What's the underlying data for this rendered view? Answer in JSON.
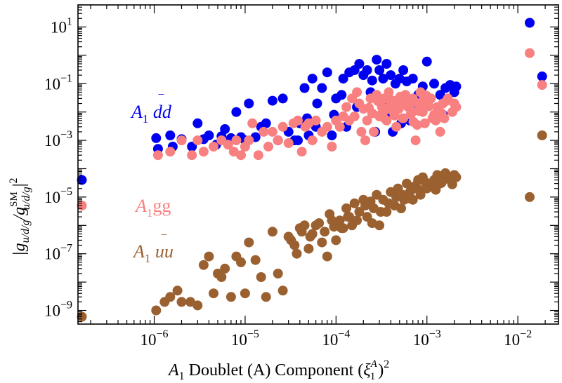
{
  "chart_data": {
    "type": "scatter",
    "title": "",
    "xscale": "log",
    "yscale": "log",
    "xlim": [
      1.45e-07,
      0.028
    ],
    "ylim": [
      3.3e-10,
      60
    ],
    "x_ticks": [
      {
        "value": 1e-06,
        "base": "10",
        "exp": "−6"
      },
      {
        "value": 1e-05,
        "base": "10",
        "exp": "−5"
      },
      {
        "value": 0.0001,
        "base": "10",
        "exp": "−4"
      },
      {
        "value": 0.001,
        "base": "10",
        "exp": "−3"
      },
      {
        "value": 0.01,
        "base": "10",
        "exp": "−2"
      }
    ],
    "y_ticks": [
      {
        "value": 10,
        "base": "10",
        "exp": "1"
      },
      {
        "value": 0.1,
        "base": "10",
        "exp": "−1"
      },
      {
        "value": 0.001,
        "base": "10",
        "exp": "−3"
      },
      {
        "value": 1e-05,
        "base": "10",
        "exp": "−5"
      },
      {
        "value": 1e-07,
        "base": "10",
        "exp": "−7"
      },
      {
        "value": 1e-09,
        "base": "10",
        "exp": "−9"
      }
    ],
    "xlabel": {
      "main": "A",
      "sub": "1",
      "text": " Doublet (A) Component (",
      "greek": "ξ",
      "greek_sup": "A",
      "greek_sub": "1",
      "close": ")",
      "power": "2"
    },
    "ylabel": {
      "text": "|g",
      "sub1": "u/d/g",
      "slash": "/g",
      "sup2": "SM",
      "sub2": "u/d/g",
      "close": "|",
      "power": "2"
    },
    "series": [
      {
        "name": "A1 dd̄",
        "label": {
          "main": "A",
          "sub": "1",
          "text": " dd",
          "bar": "‾"
        },
        "color": "#0000f0",
        "x": [
          1.6e-07,
          1.05e-06,
          1.1e-06,
          1.5e-06,
          1.6e-06,
          2e-06,
          2.6e-06,
          3e-06,
          3.5e-06,
          4e-06,
          4.8e-06,
          5.5e-06,
          6e-06,
          6.5e-06,
          7e-06,
          8e-06,
          9e-06,
          1e-05,
          1.1e-05,
          1.3e-05,
          1.5e-05,
          1.7e-05,
          2e-05,
          2.3e-05,
          2.6e-05,
          3e-05,
          3.5e-05,
          4e-05,
          4.5e-05,
          5e-05,
          5.5e-05,
          6e-05,
          7e-05,
          8e-05,
          9e-05,
          0.0001,
          0.00012,
          0.00014,
          0.00016,
          0.00018,
          0.0002,
          0.00022,
          0.00025,
          0.00028,
          0.0003,
          0.00033,
          0.00036,
          0.0004,
          0.00045,
          0.0005,
          0.00055,
          0.0006,
          0.0007,
          0.0008,
          0.0009,
          0.001,
          0.0012,
          0.0014,
          0.0016,
          0.0018,
          0.002,
          0.0021,
          0.00013,
          0.00017,
          0.00024,
          0.00032,
          0.00042,
          0.00065,
          0.00085,
          0.0011,
          0.0015,
          3.8e-05,
          4.8e-05,
          6.2e-05,
          9.5e-05,
          0.000115,
          0.00027,
          0.00037,
          0.00052,
          0.00075,
          0.0135,
          0.0185
        ],
        "y": [
          4e-05,
          0.0012,
          0.0005,
          0.0015,
          0.0006,
          0.0011,
          0.0006,
          0.004,
          0.0011,
          0.0015,
          0.0007,
          0.0014,
          0.0025,
          0.0008,
          0.0012,
          0.01,
          0.0013,
          0.001,
          0.02,
          0.0013,
          0.003,
          0.004,
          0.025,
          0.001,
          0.03,
          0.002,
          0.001,
          0.004,
          0.07,
          0.0015,
          0.15,
          0.003,
          0.07,
          0.25,
          0.0015,
          0.03,
          0.15,
          0.25,
          0.3,
          0.5,
          0.2,
          0.3,
          0.13,
          0.7,
          0.3,
          0.15,
          0.5,
          0.2,
          0.1,
          0.15,
          0.3,
          0.12,
          0.15,
          0.04,
          0.08,
          0.6,
          0.1,
          0.04,
          0.07,
          0.09,
          0.05,
          0.08,
          0.003,
          0.015,
          0.05,
          0.02,
          0.002,
          0.005,
          0.015,
          0.03,
          0.008,
          0.001,
          0.006,
          0.02,
          0.008,
          0.04,
          0.002,
          0.008,
          0.004,
          0.015,
          14,
          0.18
        ]
      },
      {
        "name": "A1gg",
        "label": {
          "main": "A",
          "sub": "1",
          "text": "gg"
        },
        "color": "#f88080",
        "x": [
          1.6e-07,
          1.1e-06,
          1.5e-06,
          2e-06,
          2.6e-06,
          3e-06,
          3.5e-06,
          4.5e-06,
          5.5e-06,
          6.5e-06,
          7.5e-06,
          8e-06,
          9e-06,
          1e-05,
          1.1e-05,
          1.2e-05,
          1.4e-05,
          1.6e-05,
          1.8e-05,
          2e-05,
          2.3e-05,
          2.6e-05,
          3e-05,
          3.4e-05,
          3.8e-05,
          4.2e-05,
          4.6e-05,
          5e-05,
          5.5e-05,
          6e-05,
          7e-05,
          8e-05,
          9e-05,
          0.0001,
          0.00011,
          0.00012,
          0.00013,
          0.00014,
          0.00015,
          0.00016,
          0.00017,
          0.00018,
          0.0002,
          0.00022,
          0.00024,
          0.00026,
          0.00028,
          0.0003,
          0.00032,
          0.00034,
          0.00036,
          0.00038,
          0.0004,
          0.00043,
          0.00046,
          0.0005,
          0.00054,
          0.00058,
          0.00062,
          0.00066,
          0.0007,
          0.00075,
          0.0008,
          0.00085,
          0.0009,
          0.00095,
          0.001,
          0.0011,
          0.0012,
          0.0013,
          0.0014,
          0.0015,
          0.0017,
          0.0019,
          0.002,
          0.0021,
          0.00025,
          0.00035,
          0.00045,
          0.00055,
          0.00065,
          0.00078,
          0.00092,
          0.00115,
          0.00021,
          0.00019,
          0.00031,
          0.00041,
          0.00051,
          0.00061,
          0.00071,
          0.00081,
          0.00105,
          0.00125,
          0.00145,
          0.00165,
          0.00023,
          0.00029,
          0.00033,
          0.00039,
          0.00044,
          0.00049,
          0.00053,
          0.00059,
          0.00069,
          0.00073,
          0.00088,
          0.00098,
          0.00135,
          0.00155,
          0.0135,
          0.0185
        ],
        "y": [
          5e-06,
          0.0003,
          0.0004,
          0.001,
          0.0003,
          0.001,
          0.0004,
          0.0006,
          0.001,
          0.0007,
          0.0004,
          0.001,
          0.0003,
          0.0006,
          0.001,
          0.004,
          0.0003,
          0.002,
          0.0006,
          0.002,
          0.001,
          0.003,
          0.0008,
          0.004,
          0.005,
          0.0004,
          0.003,
          0.004,
          0.001,
          0.005,
          0.002,
          0.003,
          0.0006,
          0.005,
          0.003,
          0.007,
          0.015,
          0.005,
          0.03,
          0.007,
          0.05,
          0.02,
          0.013,
          0.005,
          0.03,
          0.002,
          0.04,
          0.007,
          0.015,
          0.03,
          0.005,
          0.05,
          0.02,
          0.01,
          0.003,
          0.02,
          0.006,
          0.04,
          0.015,
          0.008,
          0.03,
          0.001,
          0.02,
          0.05,
          0.01,
          0.004,
          0.02,
          0.03,
          0.008,
          0.015,
          0.002,
          0.02,
          0.03,
          0.01,
          0.02,
          0.015,
          0.009,
          0.012,
          0.025,
          0.006,
          0.018,
          0.0035,
          0.028,
          0.006,
          0.001,
          0.002,
          0.008,
          0.018,
          0.035,
          0.022,
          0.0045,
          0.011,
          0.016,
          0.005,
          0.009,
          0.025,
          0.014,
          0.024,
          0.0065,
          0.028,
          0.0075,
          0.013,
          0.032,
          0.021,
          0.01,
          0.023,
          0.017,
          0.038,
          0.011,
          0.006,
          1.2,
          0.09
        ]
      },
      {
        "name": "A1 uū",
        "label": {
          "main": "A",
          "sub": "1",
          "text": " uu",
          "bar": "‾"
        },
        "color": "#9a6030",
        "x": [
          1.6e-07,
          1.05e-06,
          1.3e-06,
          1.5e-06,
          1.8e-06,
          2e-06,
          2.5e-06,
          3e-06,
          3.5e-06,
          4e-06,
          4.5e-06,
          5e-06,
          5.5e-06,
          6e-06,
          7e-06,
          8e-06,
          9e-06,
          1e-05,
          1.1e-05,
          1.3e-05,
          1.5e-05,
          1.7e-05,
          2e-05,
          2.3e-05,
          2.6e-05,
          3e-05,
          3.5e-05,
          4e-05,
          4.5e-05,
          5e-05,
          5.5e-05,
          6e-05,
          7e-05,
          8e-05,
          9e-05,
          0.0001,
          0.00011,
          0.00012,
          0.00013,
          0.00014,
          0.00015,
          0.00016,
          0.00018,
          0.0002,
          0.00022,
          0.00024,
          0.00026,
          0.00028,
          0.0003,
          0.00033,
          0.00036,
          0.0004,
          0.00044,
          0.00048,
          0.00052,
          0.00056,
          0.0006,
          0.00065,
          0.0007,
          0.00075,
          0.0008,
          0.00085,
          0.0009,
          0.001,
          0.0011,
          0.0012,
          0.0013,
          0.0014,
          0.0015,
          0.0016,
          0.0018,
          0.002,
          0.0021,
          0.000115,
          0.000135,
          0.00017,
          0.00021,
          0.00025,
          0.00031,
          0.00038,
          0.00046,
          0.00054,
          0.00062,
          0.00072,
          0.00082,
          0.00095,
          0.00105,
          0.00125,
          0.00145,
          0.0017,
          0.0019,
          3.2e-05,
          3.7e-05,
          4.2e-05,
          5.2e-05,
          6.5e-05,
          7.5e-05,
          8.5e-05,
          9.5e-05,
          0.0135,
          0.0185
        ],
        "y": [
          6e-10,
          1e-09,
          2e-09,
          3e-09,
          5e-09,
          2e-09,
          2e-09,
          1.5e-09,
          4e-08,
          8e-08,
          4e-09,
          2e-08,
          1.5e-08,
          3e-08,
          3e-09,
          8e-08,
          5e-08,
          4e-09,
          2.5e-07,
          6e-08,
          1.5e-08,
          3e-09,
          6e-07,
          2e-08,
          5e-09,
          4e-07,
          2e-07,
          8e-07,
          1e-06,
          1.5e-07,
          5e-07,
          1e-06,
          2.5e-07,
          8e-08,
          1.5e-06,
          3e-07,
          1.5e-06,
          8e-07,
          4e-06,
          2e-06,
          1e-06,
          6e-06,
          3e-06,
          8e-06,
          2e-06,
          7e-06,
          4e-06,
          1.2e-05,
          1e-06,
          8e-06,
          3e-06,
          1.5e-05,
          5e-06,
          2e-05,
          4e-06,
          8e-06,
          3e-05,
          1.5e-05,
          8e-06,
          2.5e-05,
          4e-05,
          1.2e-05,
          5e-05,
          2e-05,
          3e-05,
          4e-05,
          6e-05,
          3e-05,
          5e-05,
          7e-05,
          4e-05,
          6e-05,
          5e-05,
          8e-07,
          2e-06,
          1.5e-06,
          5e-06,
          1.2e-06,
          3e-06,
          6e-06,
          1e-05,
          1.2e-05,
          9e-06,
          2e-05,
          1.8e-05,
          3.5e-05,
          2.5e-05,
          1.8e-05,
          3.2e-05,
          4.5e-05,
          2.8e-05,
          3e-07,
          1e-07,
          6e-07,
          4e-07,
          1.2e-06,
          6e-07,
          2.5e-06,
          9e-07,
          1e-05,
          0.0015
        ]
      }
    ]
  }
}
